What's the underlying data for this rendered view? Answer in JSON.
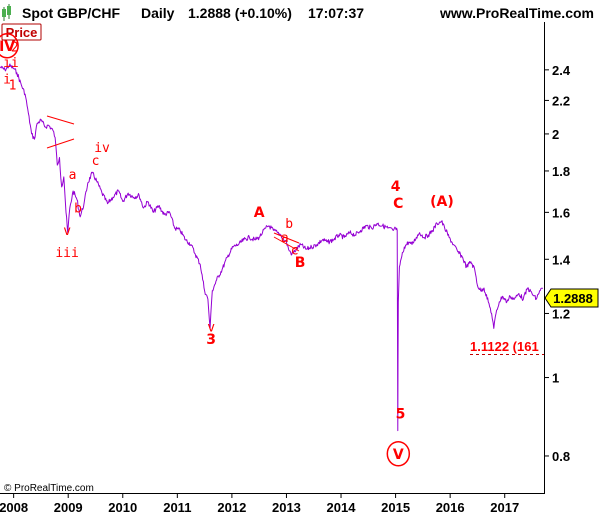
{
  "header": {
    "instrument": "Spot GBP/CHF",
    "period": "Daily",
    "last_quote": "1.2888 (+0.10%)",
    "time": "17:07:37",
    "site": "www.ProRealTime.com"
  },
  "panel_label": "Price",
  "copyright": "© ProRealTime.com",
  "colors": {
    "price_line": "#9400d3",
    "wave_labels": "#ff0000",
    "current_price_box": "#ffff00",
    "background": "#ffffff"
  },
  "current_price": "1.2888",
  "support_label": "1.1122 (161",
  "chart_data": {
    "type": "line",
    "y_scale": "log",
    "ylim": [
      0.72,
      2.75
    ],
    "xlim": [
      2007.75,
      2017.72
    ],
    "y_ticks": [
      "0.8",
      "1",
      "1.2",
      "1.4",
      "1.6",
      "1.8",
      "2",
      "2.2",
      "2.4"
    ],
    "x_ticks": [
      "2008",
      "2009",
      "2010",
      "2011",
      "2012",
      "2013",
      "2014",
      "2015",
      "2016",
      "2017"
    ],
    "grid": false,
    "series": [
      {
        "points": [
          [
            2007.75,
            2.42
          ],
          [
            2007.84,
            2.4
          ],
          [
            2007.92,
            2.43
          ],
          [
            2008.0,
            2.41
          ],
          [
            2008.06,
            2.38
          ],
          [
            2008.14,
            2.3
          ],
          [
            2008.21,
            2.24
          ],
          [
            2008.27,
            2.12
          ],
          [
            2008.33,
            2.0
          ],
          [
            2008.38,
            1.97
          ],
          [
            2008.43,
            2.06
          ],
          [
            2008.5,
            2.08
          ],
          [
            2008.58,
            2.04
          ],
          [
            2008.64,
            2.05
          ],
          [
            2008.72,
            2.02
          ],
          [
            2008.76,
            1.98
          ],
          [
            2008.8,
            1.83
          ],
          [
            2008.84,
            1.87
          ],
          [
            2008.88,
            1.72
          ],
          [
            2008.92,
            1.77
          ],
          [
            2008.96,
            1.6
          ],
          [
            2008.99,
            1.51
          ],
          [
            2009.03,
            1.62
          ],
          [
            2009.09,
            1.7
          ],
          [
            2009.16,
            1.66
          ],
          [
            2009.22,
            1.58
          ],
          [
            2009.29,
            1.64
          ],
          [
            2009.36,
            1.74
          ],
          [
            2009.44,
            1.79
          ],
          [
            2009.52,
            1.75
          ],
          [
            2009.62,
            1.69
          ],
          [
            2009.72,
            1.64
          ],
          [
            2009.82,
            1.67
          ],
          [
            2009.92,
            1.7
          ],
          [
            2010.0,
            1.65
          ],
          [
            2010.1,
            1.69
          ],
          [
            2010.2,
            1.67
          ],
          [
            2010.3,
            1.68
          ],
          [
            2010.38,
            1.62
          ],
          [
            2010.46,
            1.65
          ],
          [
            2010.56,
            1.6
          ],
          [
            2010.66,
            1.63
          ],
          [
            2010.76,
            1.59
          ],
          [
            2010.86,
            1.6
          ],
          [
            2010.95,
            1.53
          ],
          [
            2011.05,
            1.52
          ],
          [
            2011.15,
            1.48
          ],
          [
            2011.25,
            1.46
          ],
          [
            2011.33,
            1.42
          ],
          [
            2011.42,
            1.38
          ],
          [
            2011.5,
            1.28
          ],
          [
            2011.56,
            1.25
          ],
          [
            2011.6,
            1.15
          ],
          [
            2011.64,
            1.28
          ],
          [
            2011.72,
            1.32
          ],
          [
            2011.82,
            1.36
          ],
          [
            2011.92,
            1.41
          ],
          [
            2012.02,
            1.45
          ],
          [
            2012.12,
            1.46
          ],
          [
            2012.22,
            1.48
          ],
          [
            2012.32,
            1.49
          ],
          [
            2012.42,
            1.48
          ],
          [
            2012.5,
            1.49
          ],
          [
            2012.56,
            1.51
          ],
          [
            2012.62,
            1.53
          ],
          [
            2012.68,
            1.54
          ],
          [
            2012.76,
            1.52
          ],
          [
            2012.84,
            1.51
          ],
          [
            2012.9,
            1.5
          ],
          [
            2012.95,
            1.48
          ],
          [
            2013.0,
            1.47
          ],
          [
            2013.04,
            1.44
          ],
          [
            2013.1,
            1.42
          ],
          [
            2013.18,
            1.44
          ],
          [
            2013.26,
            1.46
          ],
          [
            2013.36,
            1.44
          ],
          [
            2013.46,
            1.45
          ],
          [
            2013.56,
            1.46
          ],
          [
            2013.66,
            1.48
          ],
          [
            2013.76,
            1.47
          ],
          [
            2013.86,
            1.48
          ],
          [
            2013.96,
            1.5
          ],
          [
            2014.06,
            1.49
          ],
          [
            2014.16,
            1.51
          ],
          [
            2014.26,
            1.5
          ],
          [
            2014.36,
            1.52
          ],
          [
            2014.46,
            1.54
          ],
          [
            2014.56,
            1.53
          ],
          [
            2014.66,
            1.55
          ],
          [
            2014.76,
            1.54
          ],
          [
            2014.86,
            1.53
          ],
          [
            2014.96,
            1.52
          ],
          [
            2015.0,
            1.53
          ],
          [
            2015.03,
            1.52
          ],
          [
            2015.04,
            0.86
          ],
          [
            2015.05,
            1.24
          ],
          [
            2015.07,
            1.37
          ],
          [
            2015.1,
            1.4
          ],
          [
            2015.16,
            1.45
          ],
          [
            2015.24,
            1.47
          ],
          [
            2015.3,
            1.46
          ],
          [
            2015.38,
            1.49
          ],
          [
            2015.44,
            1.51
          ],
          [
            2015.52,
            1.49
          ],
          [
            2015.6,
            1.5
          ],
          [
            2015.68,
            1.52
          ],
          [
            2015.76,
            1.55
          ],
          [
            2015.84,
            1.56
          ],
          [
            2015.9,
            1.53
          ],
          [
            2015.98,
            1.49
          ],
          [
            2016.06,
            1.46
          ],
          [
            2016.14,
            1.43
          ],
          [
            2016.22,
            1.41
          ],
          [
            2016.3,
            1.37
          ],
          [
            2016.38,
            1.39
          ],
          [
            2016.45,
            1.36
          ],
          [
            2016.5,
            1.3
          ],
          [
            2016.56,
            1.28
          ],
          [
            2016.62,
            1.29
          ],
          [
            2016.7,
            1.24
          ],
          [
            2016.76,
            1.2
          ],
          [
            2016.8,
            1.15
          ],
          [
            2016.84,
            1.2
          ],
          [
            2016.9,
            1.24
          ],
          [
            2016.96,
            1.26
          ],
          [
            2017.04,
            1.24
          ],
          [
            2017.1,
            1.26
          ],
          [
            2017.18,
            1.25
          ],
          [
            2017.26,
            1.27
          ],
          [
            2017.34,
            1.25
          ],
          [
            2017.42,
            1.29
          ],
          [
            2017.5,
            1.27
          ],
          [
            2017.58,
            1.25
          ],
          [
            2017.64,
            1.28
          ],
          [
            2017.7,
            1.2888
          ]
        ]
      }
    ],
    "annotations": [
      {
        "text": "i",
        "x": 2007.88,
        "y": 2.31
      },
      {
        "text": "ii",
        "x": 2007.95,
        "y": 2.42
      },
      {
        "text": "1",
        "x": 2007.98,
        "y": 2.27
      },
      {
        "text": "2",
        "x": 2008.02,
        "y": 2.53
      },
      {
        "text": "iv",
        "x": 2009.62,
        "y": 1.9
      },
      {
        "text": "c",
        "x": 2009.5,
        "y": 1.83
      },
      {
        "text": "a",
        "x": 2009.08,
        "y": 1.76
      },
      {
        "text": "b",
        "x": 2009.18,
        "y": 1.6
      },
      {
        "text": "v",
        "x": 2008.98,
        "y": 1.5
      },
      {
        "text": "iii",
        "x": 2008.98,
        "y": 1.41
      },
      {
        "text": "A",
        "x": 2012.5,
        "y": 1.58
      },
      {
        "text": "b",
        "x": 2013.05,
        "y": 1.53
      },
      {
        "text": "a",
        "x": 2012.97,
        "y": 1.47
      },
      {
        "text": "c",
        "x": 2013.15,
        "y": 1.42
      },
      {
        "text": "B",
        "x": 2013.25,
        "y": 1.37
      },
      {
        "text": "v",
        "x": 2011.62,
        "y": 1.14
      },
      {
        "text": "3",
        "x": 2011.62,
        "y": 1.1
      },
      {
        "text": "4",
        "x": 2015.0,
        "y": 1.7
      },
      {
        "text": "C",
        "x": 2015.05,
        "y": 1.62
      },
      {
        "text": "(A)",
        "x": 2015.85,
        "y": 1.63
      },
      {
        "text": "5",
        "x": 2015.09,
        "y": 0.89
      }
    ],
    "circled_labels": [
      {
        "text": "IV",
        "x": 2007.88,
        "y": 2.57
      },
      {
        "text": "V",
        "x": 2015.05,
        "y": 0.805
      }
    ]
  }
}
